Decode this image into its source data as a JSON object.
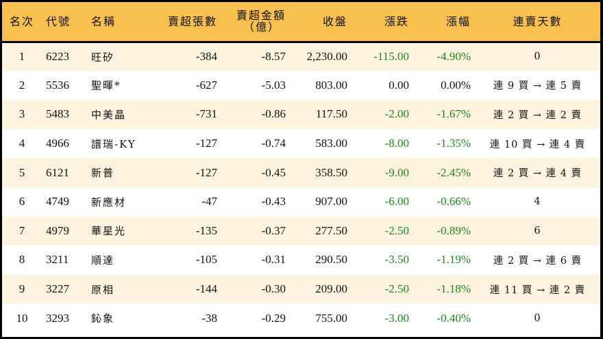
{
  "colors": {
    "header_bg": "#f7c04f",
    "row_odd_bg": "#fdf3df",
    "row_even_bg": "#ffffff",
    "negative_text": "#1a8a1a",
    "border": "#000000"
  },
  "table": {
    "headers": {
      "rank": "名次",
      "code": "代號",
      "name": "名稱",
      "net_sell_lots": "賣超張數",
      "net_sell_amount_line1": "賣超金額",
      "net_sell_amount_line2": "（億）",
      "close": "收盤",
      "change": "漲跌",
      "change_pct": "漲幅",
      "consecutive_sell_days": "連賣天數"
    },
    "rows": [
      {
        "rank": "1",
        "code": "6223",
        "name": "旺矽",
        "lots": "-384",
        "amount": "-8.57",
        "close": "2,230.00",
        "change": "-115.00",
        "pct": "-4.90%",
        "streak": "0",
        "dir": "neg"
      },
      {
        "rank": "2",
        "code": "5536",
        "name": "聖暉*",
        "lots": "-627",
        "amount": "-5.03",
        "close": "803.00",
        "change": "0.00",
        "pct": "0.00%",
        "streak": "連 9 買 → 連 5 賣",
        "dir": "flat"
      },
      {
        "rank": "3",
        "code": "5483",
        "name": "中美晶",
        "lots": "-731",
        "amount": "-0.86",
        "close": "117.50",
        "change": "-2.00",
        "pct": "-1.67%",
        "streak": "連 2 買 → 連 2 賣",
        "dir": "neg"
      },
      {
        "rank": "4",
        "code": "4966",
        "name": "譜瑞-KY",
        "lots": "-127",
        "amount": "-0.74",
        "close": "583.00",
        "change": "-8.00",
        "pct": "-1.35%",
        "streak": "連 10 買 → 連 4 賣",
        "dir": "neg"
      },
      {
        "rank": "5",
        "code": "6121",
        "name": "新普",
        "lots": "-127",
        "amount": "-0.45",
        "close": "358.50",
        "change": "-9.00",
        "pct": "-2.45%",
        "streak": "連 2 買 → 連 4 賣",
        "dir": "neg"
      },
      {
        "rank": "6",
        "code": "4749",
        "name": "新應材",
        "lots": "-47",
        "amount": "-0.43",
        "close": "907.00",
        "change": "-6.00",
        "pct": "-0.66%",
        "streak": "4",
        "dir": "neg"
      },
      {
        "rank": "7",
        "code": "4979",
        "name": "華星光",
        "lots": "-135",
        "amount": "-0.37",
        "close": "277.50",
        "change": "-2.50",
        "pct": "-0.89%",
        "streak": "6",
        "dir": "neg"
      },
      {
        "rank": "8",
        "code": "3211",
        "name": "順達",
        "lots": "-105",
        "amount": "-0.31",
        "close": "290.50",
        "change": "-3.50",
        "pct": "-1.19%",
        "streak": "連 2 買 → 連 6 賣",
        "dir": "neg"
      },
      {
        "rank": "9",
        "code": "3227",
        "name": "原相",
        "lots": "-144",
        "amount": "-0.30",
        "close": "209.00",
        "change": "-2.50",
        "pct": "-1.18%",
        "streak": "連 11 買 → 連 2 賣",
        "dir": "neg"
      },
      {
        "rank": "10",
        "code": "3293",
        "name": "鈊象",
        "lots": "-38",
        "amount": "-0.29",
        "close": "755.00",
        "change": "-3.00",
        "pct": "-0.40%",
        "streak": "0",
        "dir": "neg"
      }
    ]
  }
}
